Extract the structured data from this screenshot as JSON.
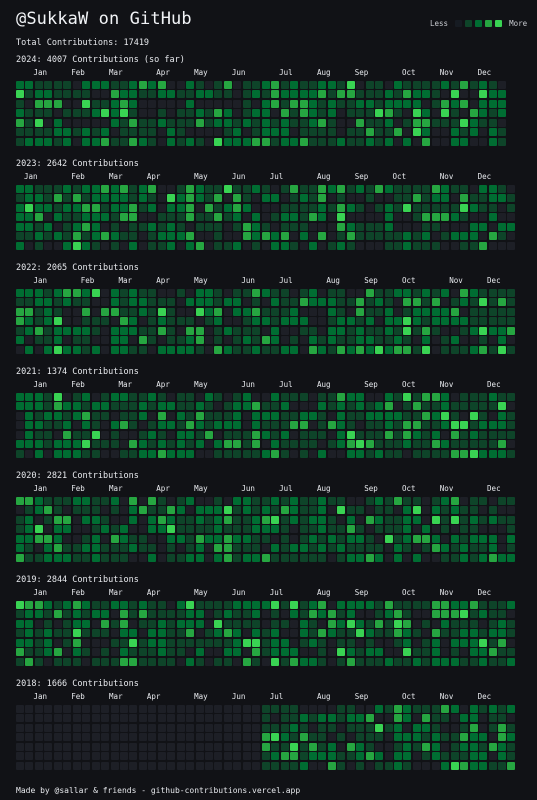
{
  "header": {
    "title": "@SukkaW on GitHub",
    "total": "Total Contributions: 17419"
  },
  "legend": {
    "less": "Less",
    "more": "More",
    "levels": [
      "#161b22",
      "#0e4429",
      "#006d32",
      "#26a641",
      "#39d353"
    ]
  },
  "colors": {
    "background": "#111216",
    "empty_cell": "#1d1f26"
  },
  "years": [
    {
      "title": "2024: 4007 Contributions (so far)",
      "months": [
        "Jan",
        "Feb",
        "Mar",
        "Apr",
        "May",
        "Jun",
        "Jul",
        "Aug",
        "Sep",
        "Oct",
        "Nov",
        "Dec"
      ],
      "month_weeks": [
        1,
        5,
        9,
        14,
        18,
        22,
        27,
        31,
        35,
        40,
        44,
        48
      ],
      "weeks": 53,
      "current_year_last_week": 51
    },
    {
      "title": "2023: 2642 Contributions",
      "months": [
        "Jan",
        "Feb",
        "Mar",
        "Apr",
        "May",
        "Jun",
        "Jul",
        "Aug",
        "Sep",
        "Oct",
        "Nov",
        "Dec"
      ],
      "month_weeks": [
        0,
        5,
        9,
        13,
        18,
        22,
        26,
        31,
        35,
        39,
        44,
        48
      ],
      "weeks": 53
    },
    {
      "title": "2022: 2065 Contributions",
      "months": [
        "Jan",
        "Feb",
        "Mar",
        "Apr",
        "May",
        "Jun",
        "Jul",
        "Aug",
        "Sep",
        "Oct",
        "Nov",
        "Dec"
      ],
      "month_weeks": [
        1,
        6,
        10,
        14,
        18,
        23,
        27,
        32,
        36,
        40,
        45,
        49
      ],
      "weeks": 53
    },
    {
      "title": "2021: 1374 Contributions",
      "months": [
        "Jan",
        "Feb",
        "Mar",
        "Apr",
        "May",
        "Jun",
        "Jul",
        "Aug",
        "Sep",
        "Oct",
        "Nov",
        "Dec"
      ],
      "month_weeks": [
        1,
        5,
        10,
        14,
        18,
        23,
        27,
        31,
        36,
        40,
        44,
        49
      ],
      "weeks": 53
    },
    {
      "title": "2020: 2821 Contributions",
      "months": [
        "Jan",
        "Feb",
        "Mar",
        "Apr",
        "May",
        "Jun",
        "Jul",
        "Aug",
        "Sep",
        "Oct",
        "Nov",
        "Dec"
      ],
      "month_weeks": [
        1,
        5,
        9,
        14,
        18,
        23,
        27,
        31,
        36,
        40,
        44,
        49
      ],
      "weeks": 53
    },
    {
      "title": "2019: 2844 Contributions",
      "months": [
        "Jan",
        "Feb",
        "Mar",
        "Apr",
        "May",
        "Jun",
        "Jul",
        "Aug",
        "Sep",
        "Oct",
        "Nov",
        "Dec"
      ],
      "month_weeks": [
        1,
        5,
        9,
        13,
        18,
        22,
        26,
        31,
        35,
        40,
        44,
        48
      ],
      "weeks": 53
    },
    {
      "title": "2018: 1666 Contributions",
      "months": [
        "Jan",
        "Feb",
        "Mar",
        "Apr",
        "May",
        "Jun",
        "Jul",
        "Aug",
        "Sep",
        "Oct",
        "Nov",
        "Dec"
      ],
      "month_weeks": [
        1,
        5,
        9,
        13,
        18,
        22,
        26,
        31,
        35,
        40,
        44,
        48
      ],
      "weeks": 53,
      "active_from_week": 26
    }
  ],
  "footer": "Made by @sallar & friends - github-contributions.vercel.app"
}
